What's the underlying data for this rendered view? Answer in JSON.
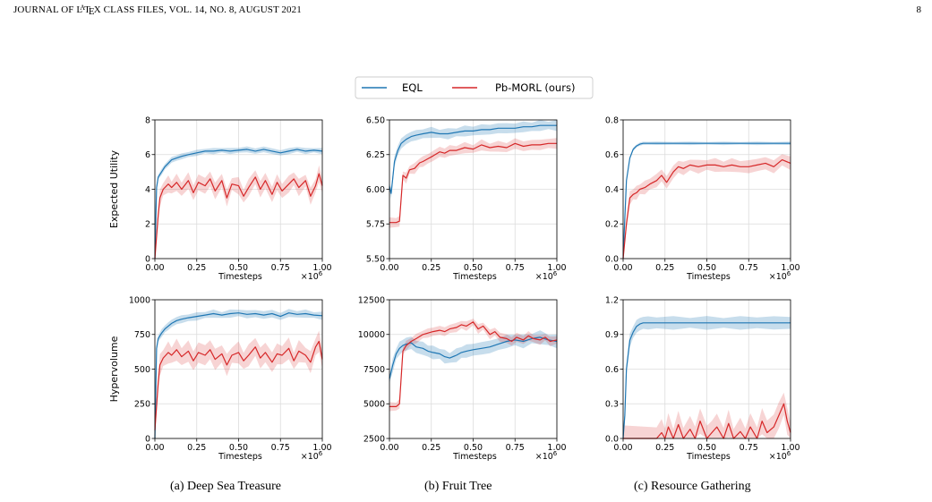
{
  "header": {
    "journal_prefix": "JOURNAL OF ",
    "latex_l": "L",
    "latex_a": "A",
    "latex_t": "T",
    "latex_e": "E",
    "latex_x": "X",
    "journal_suffix": " CLASS FILES, VOL. 14, NO. 8, AUGUST 2021",
    "page_number": "8"
  },
  "legend": {
    "placement": "top-center"
  },
  "captions": [
    "(a) Deep Sea Treasure",
    "(b) Fruit Tree",
    "(c) Resource Gathering"
  ],
  "colors": {
    "eql": "#1f77b4",
    "pb": "#d62728"
  },
  "chart_data": [
    {
      "id": "dst-eu",
      "type": "line",
      "xlabel": "Timesteps",
      "ylabel": "Expected Utility",
      "x_multiplier": "×10",
      "x_multiplier_exp": "6",
      "xlim": [
        0,
        1
      ],
      "ylim": [
        0,
        8
      ],
      "xticks": [
        "0.00",
        "0.25",
        "0.50",
        "0.75",
        "1.00"
      ],
      "yticks": [
        "0",
        "2",
        "4",
        "6",
        "8"
      ],
      "series": [
        {
          "name": "EQL",
          "band": 0.18,
          "x": [
            0,
            0.01,
            0.02,
            0.04,
            0.06,
            0.08,
            0.1,
            0.13,
            0.16,
            0.2,
            0.25,
            0.3,
            0.35,
            0.4,
            0.45,
            0.5,
            0.55,
            0.6,
            0.65,
            0.7,
            0.75,
            0.8,
            0.85,
            0.9,
            0.95,
            1.0
          ],
          "y": [
            0,
            4.1,
            4.7,
            5.0,
            5.3,
            5.5,
            5.7,
            5.8,
            5.9,
            6.0,
            6.1,
            6.2,
            6.2,
            6.25,
            6.2,
            6.25,
            6.3,
            6.2,
            6.3,
            6.2,
            6.1,
            6.2,
            6.3,
            6.2,
            6.25,
            6.2
          ]
        },
        {
          "name": "Pb-MORL (ours)",
          "band": 0.5,
          "x": [
            0,
            0.02,
            0.03,
            0.05,
            0.08,
            0.1,
            0.13,
            0.16,
            0.2,
            0.23,
            0.26,
            0.3,
            0.33,
            0.36,
            0.4,
            0.43,
            0.46,
            0.5,
            0.53,
            0.56,
            0.6,
            0.63,
            0.66,
            0.7,
            0.73,
            0.76,
            0.8,
            0.83,
            0.86,
            0.9,
            0.93,
            0.96,
            0.98,
            1.0
          ],
          "y": [
            0,
            2.5,
            3.5,
            4.0,
            4.3,
            4.1,
            4.4,
            4.0,
            4.5,
            3.8,
            4.4,
            4.2,
            4.6,
            3.9,
            4.5,
            3.5,
            4.3,
            4.2,
            3.6,
            4.1,
            4.7,
            4.0,
            4.5,
            3.7,
            4.4,
            3.9,
            4.3,
            4.6,
            4.1,
            4.5,
            3.6,
            4.2,
            4.9,
            4.2
          ]
        }
      ]
    },
    {
      "id": "ft-eu",
      "type": "line",
      "xlabel": "Timesteps",
      "ylabel": "",
      "x_multiplier": "×10",
      "x_multiplier_exp": "6",
      "xlim": [
        0,
        1
      ],
      "ylim": [
        5.5,
        6.5
      ],
      "xticks": [
        "0.00",
        "0.25",
        "0.50",
        "0.75",
        "1.00"
      ],
      "yticks": [
        "5.50",
        "5.75",
        "6.00",
        "6.25",
        "6.50"
      ],
      "series": [
        {
          "name": "EQL",
          "band": 0.04,
          "x": [
            0,
            0.01,
            0.02,
            0.03,
            0.05,
            0.07,
            0.1,
            0.13,
            0.16,
            0.2,
            0.25,
            0.3,
            0.35,
            0.4,
            0.45,
            0.5,
            0.55,
            0.6,
            0.65,
            0.7,
            0.75,
            0.8,
            0.85,
            0.9,
            0.95,
            1.0
          ],
          "y": [
            6.02,
            5.97,
            6.08,
            6.2,
            6.28,
            6.33,
            6.36,
            6.38,
            6.39,
            6.4,
            6.41,
            6.4,
            6.4,
            6.41,
            6.42,
            6.42,
            6.43,
            6.43,
            6.44,
            6.44,
            6.44,
            6.45,
            6.45,
            6.46,
            6.46,
            6.46
          ]
        },
        {
          "name": "Pb-MORL (ours)",
          "band": 0.04,
          "x": [
            0,
            0.04,
            0.06,
            0.08,
            0.1,
            0.12,
            0.15,
            0.18,
            0.2,
            0.23,
            0.26,
            0.3,
            0.33,
            0.36,
            0.4,
            0.45,
            0.5,
            0.55,
            0.6,
            0.65,
            0.7,
            0.75,
            0.8,
            0.85,
            0.9,
            0.95,
            1.0
          ],
          "y": [
            5.76,
            5.76,
            5.77,
            6.1,
            6.08,
            6.14,
            6.15,
            6.19,
            6.2,
            6.22,
            6.24,
            6.27,
            6.26,
            6.28,
            6.28,
            6.3,
            6.29,
            6.32,
            6.3,
            6.31,
            6.3,
            6.33,
            6.31,
            6.32,
            6.32,
            6.33,
            6.33
          ]
        }
      ]
    },
    {
      "id": "rg-eu",
      "type": "line",
      "xlabel": "Timesteps",
      "ylabel": "",
      "x_multiplier": "×10",
      "x_multiplier_exp": "6",
      "xlim": [
        0,
        1
      ],
      "ylim": [
        0,
        0.8
      ],
      "xticks": [
        "0.00",
        "0.25",
        "0.50",
        "0.75",
        "1.00"
      ],
      "yticks": [
        "0.0",
        "0.2",
        "0.4",
        "0.6",
        "0.8"
      ],
      "series": [
        {
          "name": "EQL",
          "band": 0.01,
          "x": [
            0,
            0.02,
            0.04,
            0.06,
            0.08,
            0.1,
            0.12,
            0.15,
            0.2,
            0.3,
            0.4,
            0.5,
            0.6,
            0.7,
            0.8,
            0.9,
            1.0
          ],
          "y": [
            0,
            0.45,
            0.58,
            0.63,
            0.65,
            0.66,
            0.665,
            0.665,
            0.665,
            0.665,
            0.665,
            0.665,
            0.665,
            0.665,
            0.665,
            0.665,
            0.665
          ]
        },
        {
          "name": "Pb-MORL (ours)",
          "band": 0.04,
          "x": [
            0,
            0.02,
            0.04,
            0.06,
            0.08,
            0.1,
            0.13,
            0.16,
            0.2,
            0.23,
            0.26,
            0.3,
            0.33,
            0.36,
            0.4,
            0.45,
            0.5,
            0.55,
            0.6,
            0.65,
            0.7,
            0.75,
            0.8,
            0.85,
            0.9,
            0.95,
            1.0
          ],
          "y": [
            0,
            0.2,
            0.35,
            0.37,
            0.38,
            0.4,
            0.41,
            0.43,
            0.45,
            0.48,
            0.44,
            0.5,
            0.53,
            0.52,
            0.54,
            0.53,
            0.54,
            0.54,
            0.53,
            0.54,
            0.53,
            0.53,
            0.54,
            0.55,
            0.53,
            0.57,
            0.55
          ]
        }
      ]
    },
    {
      "id": "dst-hv",
      "type": "line",
      "xlabel": "Timesteps",
      "ylabel": "Hypervolume",
      "x_multiplier": "×10",
      "x_multiplier_exp": "6",
      "xlim": [
        0,
        1
      ],
      "ylim": [
        0,
        1000
      ],
      "xticks": [
        "0.00",
        "0.25",
        "0.50",
        "0.75",
        "1.00"
      ],
      "yticks": [
        "0",
        "250",
        "500",
        "750",
        "1000"
      ],
      "series": [
        {
          "name": "EQL",
          "band": 30,
          "x": [
            0,
            0.01,
            0.02,
            0.04,
            0.06,
            0.08,
            0.1,
            0.13,
            0.16,
            0.2,
            0.25,
            0.3,
            0.35,
            0.4,
            0.45,
            0.5,
            0.55,
            0.6,
            0.65,
            0.7,
            0.75,
            0.8,
            0.85,
            0.9,
            0.95,
            1.0
          ],
          "y": [
            0,
            650,
            720,
            760,
            790,
            810,
            830,
            850,
            860,
            870,
            880,
            890,
            900,
            890,
            900,
            905,
            895,
            900,
            890,
            900,
            880,
            905,
            895,
            900,
            890,
            885
          ]
        },
        {
          "name": "Pb-MORL (ours)",
          "band": 80,
          "x": [
            0,
            0.02,
            0.03,
            0.05,
            0.08,
            0.1,
            0.13,
            0.16,
            0.2,
            0.23,
            0.26,
            0.3,
            0.33,
            0.36,
            0.4,
            0.43,
            0.46,
            0.5,
            0.53,
            0.56,
            0.6,
            0.63,
            0.66,
            0.7,
            0.73,
            0.76,
            0.8,
            0.83,
            0.86,
            0.9,
            0.93,
            0.96,
            0.98,
            1.0
          ],
          "y": [
            60,
            400,
            530,
            580,
            620,
            600,
            640,
            590,
            630,
            560,
            620,
            600,
            640,
            570,
            610,
            530,
            600,
            620,
            560,
            600,
            660,
            580,
            620,
            550,
            610,
            600,
            650,
            560,
            630,
            600,
            550,
            660,
            700,
            570
          ]
        }
      ]
    },
    {
      "id": "ft-hv",
      "type": "line",
      "xlabel": "Timesteps",
      "ylabel": "",
      "x_multiplier": "×10",
      "x_multiplier_exp": "6",
      "xlim": [
        0,
        1
      ],
      "ylim": [
        2500,
        12500
      ],
      "xticks": [
        "0.00",
        "0.25",
        "0.50",
        "0.75",
        "1.00"
      ],
      "yticks": [
        "2500",
        "5000",
        "7500",
        "10000",
        "12500"
      ],
      "series": [
        {
          "name": "EQL",
          "band": 500,
          "x": [
            0,
            0.02,
            0.04,
            0.06,
            0.08,
            0.1,
            0.13,
            0.16,
            0.2,
            0.23,
            0.26,
            0.3,
            0.33,
            0.36,
            0.4,
            0.43,
            0.46,
            0.5,
            0.55,
            0.6,
            0.65,
            0.7,
            0.75,
            0.8,
            0.85,
            0.9,
            0.95,
            1.0
          ],
          "y": [
            6800,
            7800,
            8600,
            9000,
            9200,
            9300,
            9400,
            9100,
            9000,
            8800,
            8700,
            8600,
            8400,
            8300,
            8500,
            8700,
            8800,
            8900,
            9000,
            9100,
            9300,
            9500,
            9600,
            9500,
            9700,
            9800,
            9600,
            9500
          ]
        },
        {
          "name": "Pb-MORL (ours)",
          "band": 350,
          "x": [
            0,
            0.04,
            0.06,
            0.08,
            0.1,
            0.13,
            0.16,
            0.2,
            0.23,
            0.26,
            0.3,
            0.33,
            0.36,
            0.4,
            0.43,
            0.46,
            0.5,
            0.53,
            0.56,
            0.6,
            0.63,
            0.66,
            0.7,
            0.73,
            0.76,
            0.8,
            0.83,
            0.86,
            0.9,
            0.93,
            0.96,
            1.0
          ],
          "y": [
            4800,
            4800,
            5000,
            8800,
            9200,
            9500,
            9700,
            10000,
            10100,
            10200,
            10300,
            10200,
            10400,
            10500,
            10700,
            10600,
            10900,
            10400,
            10600,
            10000,
            10200,
            9800,
            9700,
            9500,
            9800,
            9600,
            9900,
            9700,
            9600,
            9800,
            9500,
            9600
          ]
        }
      ]
    },
    {
      "id": "rg-hv",
      "type": "line",
      "xlabel": "Timesteps",
      "ylabel": "",
      "x_multiplier": "×10",
      "x_multiplier_exp": "6",
      "xlim": [
        0,
        1
      ],
      "ylim": [
        0,
        1.2
      ],
      "xticks": [
        "0.00",
        "0.25",
        "0.50",
        "0.75",
        "1.00"
      ],
      "yticks": [
        "0.0",
        "0.3",
        "0.6",
        "0.9",
        "1.2"
      ],
      "series": [
        {
          "name": "EQL",
          "band": 0.06,
          "x": [
            0,
            0.01,
            0.02,
            0.04,
            0.06,
            0.08,
            0.1,
            0.12,
            0.15,
            0.2,
            0.3,
            0.4,
            0.5,
            0.6,
            0.7,
            0.8,
            0.9,
            1.0
          ],
          "y": [
            0,
            0.2,
            0.6,
            0.85,
            0.92,
            0.97,
            0.99,
            1.0,
            1.0,
            1.0,
            1.0,
            1.0,
            1.0,
            1.0,
            1.0,
            1.0,
            1.0,
            1.0
          ]
        },
        {
          "name": "Pb-MORL (ours)",
          "band": 0.12,
          "x": [
            0,
            0.2,
            0.23,
            0.25,
            0.27,
            0.3,
            0.33,
            0.36,
            0.4,
            0.43,
            0.46,
            0.5,
            0.53,
            0.56,
            0.6,
            0.63,
            0.66,
            0.7,
            0.73,
            0.76,
            0.8,
            0.83,
            0.86,
            0.9,
            0.93,
            0.96,
            0.98,
            1.0
          ],
          "y": [
            0,
            0,
            0.05,
            0,
            0.1,
            0,
            0.12,
            0,
            0.08,
            0,
            0.15,
            0,
            0.05,
            0.1,
            0,
            0.13,
            0,
            0.06,
            0,
            0.1,
            0,
            0.15,
            0.05,
            0.1,
            0.2,
            0.3,
            0.15,
            0.05
          ]
        }
      ]
    }
  ]
}
